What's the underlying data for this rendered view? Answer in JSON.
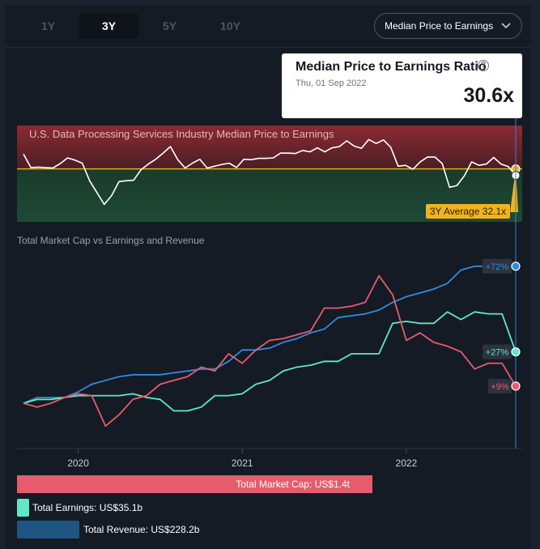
{
  "tabs": [
    {
      "label": "1Y",
      "active": false
    },
    {
      "label": "3Y",
      "active": true
    },
    {
      "label": "5Y",
      "active": false
    },
    {
      "label": "10Y",
      "active": false
    }
  ],
  "dropdown": {
    "label": "Median Price to Earnings",
    "icon": "chevron-down-icon"
  },
  "tooltip": {
    "title": "Median Price to Earnings Ratio",
    "help_icon": "question-circle-icon",
    "help_glyph": "?",
    "date": "Thu, 01 Sep 2022",
    "value": "30.6x"
  },
  "colors": {
    "market_cap": "#e65c6c",
    "earnings": "#5ee8c6",
    "revenue": "#2f8be0",
    "average": "#f1b41c",
    "pe_line": "#ffffff",
    "band_top": "#8c2a32",
    "band_bottom": "#1d4a35"
  },
  "chart_data": [
    {
      "type": "line",
      "title": "U.S. Data Processing Services Industry Median Price to Earnings",
      "average_label": "3Y Average 32.1x",
      "average": 32.1,
      "series": [
        {
          "values": [
            35.5,
            32.4,
            32.5,
            32.4,
            32.3,
            33.3,
            34.6,
            34.1,
            33.4,
            29.4,
            26.7,
            24.0,
            26.0,
            29.2,
            29.4,
            29.5,
            31.9,
            33.2,
            34.3,
            35.7,
            37.2,
            34.2,
            32.3,
            33.4,
            34.3,
            32.3,
            32.7,
            33.1,
            33.4,
            32.4,
            34.3,
            34.2,
            34.5,
            34.5,
            34.6,
            35.7,
            35.7,
            35.6,
            36.3,
            36.0,
            36.9,
            36.0,
            36.9,
            37.2,
            38.5,
            37.3,
            36.8,
            38.8,
            37.9,
            38.7,
            37.0,
            32.7,
            32.9,
            32.0,
            33.7,
            34.8,
            34.8,
            33.3,
            27.9,
            28.3,
            30.5,
            33.7,
            32.9,
            33.2,
            34.7,
            33.2,
            32.6,
            30.6
          ]
        }
      ]
    },
    {
      "type": "line",
      "title": "Total Market Cap vs Earnings and Revenue",
      "x": [
        "2019-09",
        "2019-10",
        "2019-11",
        "2019-12",
        "2020-01",
        "2020-02",
        "2020-03",
        "2020-04",
        "2020-05",
        "2020-06",
        "2020-07",
        "2020-08",
        "2020-09",
        "2020-10",
        "2020-11",
        "2020-12",
        "2021-01",
        "2021-02",
        "2021-03",
        "2021-04",
        "2021-05",
        "2021-06",
        "2021-07",
        "2021-08",
        "2021-09",
        "2021-10",
        "2021-11",
        "2021-12",
        "2022-01",
        "2022-02",
        "2022-03",
        "2022-04",
        "2022-05",
        "2022-06",
        "2022-07",
        "2022-08",
        "2022-09"
      ],
      "x_ticks": [
        "2020",
        "2021",
        "2022"
      ],
      "series": [
        {
          "name": "Total Market Cap",
          "label": "+9%",
          "values": [
            0,
            -2,
            0,
            3,
            5,
            4,
            -12,
            -6,
            2,
            4,
            10,
            12,
            14,
            19,
            17,
            26,
            21,
            28,
            33,
            34,
            36,
            38,
            50,
            50,
            51,
            53,
            67,
            57,
            33,
            37,
            32,
            30,
            27,
            18,
            21,
            21,
            9
          ]
        },
        {
          "name": "Total Earnings",
          "label": "+27%",
          "values": [
            0,
            2,
            2,
            3,
            4,
            4,
            4,
            4,
            5,
            3,
            2,
            -4,
            -4,
            -2,
            4,
            4,
            5,
            10,
            12,
            17,
            19,
            20,
            22,
            22,
            26,
            26,
            26,
            42,
            43,
            42,
            42,
            48,
            44,
            48,
            47,
            47,
            27
          ]
        },
        {
          "name": "Total Revenue",
          "label": "+72%",
          "values": [
            0,
            3,
            3,
            3,
            6,
            10,
            12,
            14,
            15,
            15,
            15,
            16,
            17,
            18,
            18,
            22,
            28,
            28,
            29,
            32,
            34,
            37,
            39,
            45,
            46,
            47,
            49,
            53,
            56,
            58,
            60,
            63,
            70,
            72,
            72,
            72,
            72
          ]
        }
      ],
      "legend": {
        "market_cap": "Total Market Cap: US$1.4t",
        "earnings": "Total Earnings: US$35.1b",
        "revenue": "Total Revenue: US$228.2b"
      }
    }
  ]
}
